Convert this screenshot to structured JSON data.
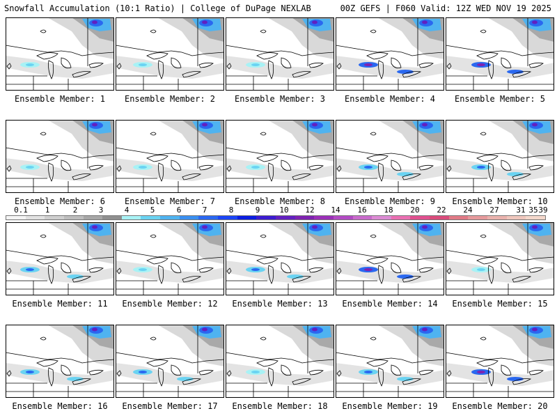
{
  "header": {
    "title": "Snowfall Accumulation (10:1 Ratio) | College of DuPage NEXLAB",
    "valid": "00Z GEFS | F060 Valid: 12Z WED NOV 19 2025"
  },
  "legend": {
    "ticks": [
      "0.1",
      "1",
      "2",
      "3",
      "4",
      "5",
      "6",
      "7",
      "8",
      "9",
      "10",
      "12",
      "14",
      "16",
      "18",
      "20",
      "22",
      "24",
      "27",
      "31",
      "35",
      "39"
    ],
    "colors": [
      "#f4f4f4",
      "#e2e2e2",
      "#cfcfcf",
      "#bdbdbd",
      "#a7a7a7",
      "#8f8f8f",
      "#a8f2f5",
      "#6ad3f2",
      "#4fb3f0",
      "#3a8ff0",
      "#2a68f0",
      "#1b45f5",
      "#0a1de0",
      "#3b1cd0",
      "#6220c0",
      "#7e22b0",
      "#9a2fb8",
      "#b24ac4",
      "#c96bcc",
      "#dc8bd4",
      "#ea6fb2",
      "#e0508f",
      "#d94b7b",
      "#e17a86",
      "#e69a9c",
      "#eab2ad",
      "#efc7bd",
      "#f4d8cc"
    ]
  },
  "members": [
    {
      "label": "Ensemble Member: 1",
      "band": "light",
      "blobs": []
    },
    {
      "label": "Ensemble Member: 2",
      "band": "light",
      "blobs": []
    },
    {
      "label": "Ensemble Member: 3",
      "band": "light",
      "blobs": []
    },
    {
      "label": "Ensemble Member: 4",
      "band": "heavy",
      "blobs": []
    },
    {
      "label": "Ensemble Member: 5",
      "band": "heavy",
      "blobs": []
    },
    {
      "label": "Ensemble Member: 6",
      "band": "light",
      "blobs": []
    },
    {
      "label": "Ensemble Member: 7",
      "band": "light",
      "blobs": []
    },
    {
      "label": "Ensemble Member: 8",
      "band": "light",
      "blobs": []
    },
    {
      "label": "Ensemble Member: 9",
      "band": "moderate",
      "blobs": []
    },
    {
      "label": "Ensemble Member: 10",
      "band": "moderate",
      "blobs": []
    },
    {
      "label": "Ensemble Member: 11",
      "band": "moderate",
      "blobs": []
    },
    {
      "label": "Ensemble Member: 12",
      "band": "light",
      "blobs": []
    },
    {
      "label": "Ensemble Member: 13",
      "band": "moderate",
      "blobs": []
    },
    {
      "label": "Ensemble Member: 14",
      "band": "heavy",
      "blobs": []
    },
    {
      "label": "Ensemble Member: 15",
      "band": "light",
      "blobs": []
    },
    {
      "label": "Ensemble Member: 16",
      "band": "moderate",
      "blobs": []
    },
    {
      "label": "Ensemble Member: 17",
      "band": "moderate",
      "blobs": []
    },
    {
      "label": "Ensemble Member: 18",
      "band": "light",
      "blobs": []
    },
    {
      "label": "Ensemble Member: 19",
      "band": "moderate",
      "blobs": []
    },
    {
      "label": "Ensemble Member: 20",
      "band": "heavy",
      "blobs": []
    }
  ]
}
